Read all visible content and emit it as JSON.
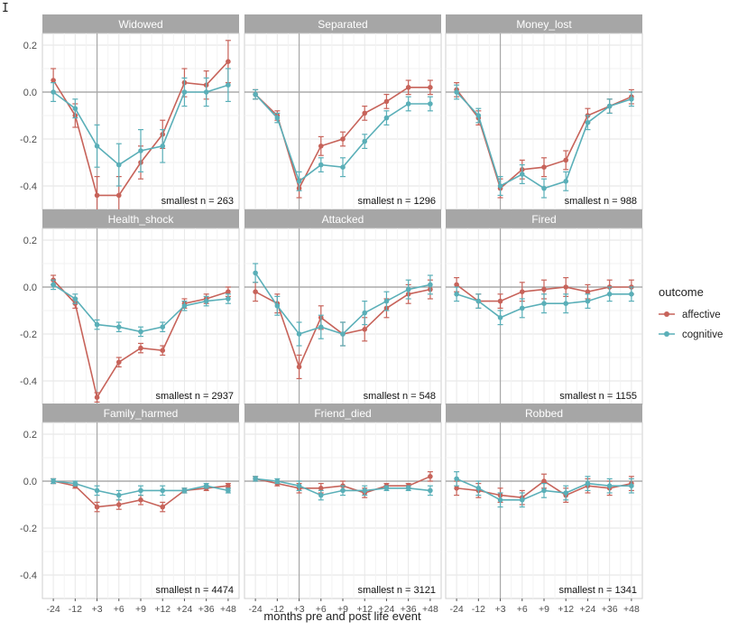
{
  "chart_data": {
    "type": "line",
    "facet_grid": "3x3",
    "xlabel": "months pre and post life event",
    "ylabel": "",
    "x_ticks": [
      "-24",
      "-12",
      "+3",
      "+6",
      "+9",
      "+12",
      "+24",
      "+36",
      "+48"
    ],
    "y_ticks": [
      "0.2",
      "0.0",
      "-0.2",
      "-0.4"
    ],
    "ylim": [
      -0.5,
      0.25
    ],
    "event_line_at": "+3",
    "grid": true,
    "legend": {
      "title": "outcome",
      "position": "right",
      "items": [
        {
          "name": "affective",
          "color": "#C7635A"
        },
        {
          "name": "cognitive",
          "color": "#5AAFB8"
        }
      ]
    },
    "panels": [
      {
        "title": "Widowed",
        "note": "smallest n = 263",
        "series": [
          {
            "name": "affective",
            "values": [
              0.05,
              -0.1,
              -0.44,
              -0.44,
              -0.3,
              -0.18,
              0.04,
              0.03,
              0.13
            ],
            "err": [
              0.05,
              0.05,
              0.08,
              0.08,
              0.07,
              0.06,
              0.06,
              0.06,
              0.09
            ]
          },
          {
            "name": "cognitive",
            "values": [
              0.0,
              -0.07,
              -0.23,
              -0.31,
              -0.25,
              -0.23,
              0.0,
              0.0,
              0.03
            ],
            "err": [
              0.04,
              0.04,
              0.09,
              0.09,
              0.09,
              0.07,
              0.06,
              0.06,
              0.07
            ]
          }
        ]
      },
      {
        "title": "Separated",
        "note": "smallest n = 1296",
        "series": [
          {
            "name": "affective",
            "values": [
              -0.01,
              -0.1,
              -0.41,
              -0.23,
              -0.2,
              -0.09,
              -0.04,
              0.02,
              0.02
            ],
            "err": [
              0.02,
              0.02,
              0.04,
              0.04,
              0.03,
              0.03,
              0.03,
              0.03,
              0.03
            ]
          },
          {
            "name": "cognitive",
            "values": [
              -0.01,
              -0.11,
              -0.38,
              -0.31,
              -0.32,
              -0.21,
              -0.11,
              -0.05,
              -0.05
            ],
            "err": [
              0.02,
              0.02,
              0.04,
              0.03,
              0.04,
              0.03,
              0.03,
              0.03,
              0.03
            ]
          }
        ]
      },
      {
        "title": "Money_lost",
        "note": "smallest n = 988",
        "series": [
          {
            "name": "affective",
            "values": [
              0.01,
              -0.11,
              -0.41,
              -0.33,
              -0.32,
              -0.29,
              -0.1,
              -0.06,
              -0.02
            ],
            "err": [
              0.03,
              0.03,
              0.04,
              0.04,
              0.04,
              0.04,
              0.03,
              0.03,
              0.03
            ]
          },
          {
            "name": "cognitive",
            "values": [
              0.0,
              -0.1,
              -0.4,
              -0.35,
              -0.41,
              -0.38,
              -0.13,
              -0.06,
              -0.03
            ],
            "err": [
              0.03,
              0.03,
              0.04,
              0.04,
              0.04,
              0.04,
              0.03,
              0.03,
              0.03
            ]
          }
        ]
      },
      {
        "title": "Health_shock",
        "note": "smallest n = 2937",
        "series": [
          {
            "name": "affective",
            "values": [
              0.03,
              -0.07,
              -0.47,
              -0.32,
              -0.26,
              -0.27,
              -0.07,
              -0.05,
              -0.02
            ],
            "err": [
              0.02,
              0.02,
              0.02,
              0.02,
              0.02,
              0.02,
              0.02,
              0.02,
              0.02
            ]
          },
          {
            "name": "cognitive",
            "values": [
              0.01,
              -0.05,
              -0.16,
              -0.17,
              -0.19,
              -0.17,
              -0.08,
              -0.06,
              -0.05
            ],
            "err": [
              0.02,
              0.02,
              0.02,
              0.02,
              0.02,
              0.02,
              0.02,
              0.02,
              0.02
            ]
          }
        ]
      },
      {
        "title": "Attacked",
        "note": "smallest n = 548",
        "series": [
          {
            "name": "affective",
            "values": [
              -0.02,
              -0.07,
              -0.34,
              -0.13,
              -0.2,
              -0.18,
              -0.09,
              -0.03,
              -0.01
            ],
            "err": [
              0.04,
              0.04,
              0.05,
              0.05,
              0.05,
              0.05,
              0.04,
              0.04,
              0.04
            ]
          },
          {
            "name": "cognitive",
            "values": [
              0.06,
              -0.08,
              -0.2,
              -0.17,
              -0.2,
              -0.11,
              -0.06,
              -0.01,
              0.01
            ],
            "err": [
              0.04,
              0.04,
              0.05,
              0.05,
              0.05,
              0.05,
              0.04,
              0.04,
              0.04
            ]
          }
        ]
      },
      {
        "title": "Fired",
        "note": "smallest n = 1155",
        "series": [
          {
            "name": "affective",
            "values": [
              0.01,
              -0.06,
              -0.06,
              -0.02,
              -0.01,
              0.0,
              -0.02,
              0.0,
              0.0
            ],
            "err": [
              0.03,
              0.03,
              0.03,
              0.04,
              0.04,
              0.04,
              0.03,
              0.03,
              0.03
            ]
          },
          {
            "name": "cognitive",
            "values": [
              -0.03,
              -0.06,
              -0.13,
              -0.09,
              -0.07,
              -0.07,
              -0.06,
              -0.03,
              -0.03
            ],
            "err": [
              0.03,
              0.03,
              0.03,
              0.04,
              0.04,
              0.04,
              0.03,
              0.03,
              0.03
            ]
          }
        ]
      },
      {
        "title": "Family_harmed",
        "note": "smallest n = 4474",
        "series": [
          {
            "name": "affective",
            "values": [
              0.0,
              -0.02,
              -0.11,
              -0.1,
              -0.08,
              -0.11,
              -0.04,
              -0.03,
              -0.02
            ],
            "err": [
              0.01,
              0.01,
              0.02,
              0.02,
              0.02,
              0.02,
              0.01,
              0.01,
              0.01
            ]
          },
          {
            "name": "cognitive",
            "values": [
              0.0,
              -0.01,
              -0.04,
              -0.06,
              -0.04,
              -0.04,
              -0.04,
              -0.02,
              -0.04
            ],
            "err": [
              0.01,
              0.01,
              0.02,
              0.02,
              0.02,
              0.02,
              0.01,
              0.01,
              0.01
            ]
          }
        ]
      },
      {
        "title": "Friend_died",
        "note": "smallest n = 3121",
        "series": [
          {
            "name": "affective",
            "values": [
              0.01,
              -0.01,
              -0.03,
              -0.03,
              -0.02,
              -0.05,
              -0.02,
              -0.02,
              0.02
            ],
            "err": [
              0.01,
              0.01,
              0.02,
              0.02,
              0.02,
              0.02,
              0.01,
              0.01,
              0.02
            ]
          },
          {
            "name": "cognitive",
            "values": [
              0.01,
              0.0,
              -0.02,
              -0.06,
              -0.04,
              -0.04,
              -0.03,
              -0.03,
              -0.04
            ],
            "err": [
              0.01,
              0.01,
              0.02,
              0.02,
              0.02,
              0.02,
              0.01,
              0.01,
              0.02
            ]
          }
        ]
      },
      {
        "title": "Robbed",
        "note": "smallest n = 1341",
        "series": [
          {
            "name": "affective",
            "values": [
              -0.03,
              -0.04,
              -0.06,
              -0.07,
              0.0,
              -0.06,
              -0.02,
              -0.03,
              -0.01
            ],
            "err": [
              0.03,
              0.03,
              0.03,
              0.03,
              0.03,
              0.03,
              0.03,
              0.03,
              0.03
            ]
          },
          {
            "name": "cognitive",
            "values": [
              0.01,
              -0.03,
              -0.08,
              -0.08,
              -0.04,
              -0.05,
              -0.01,
              -0.02,
              -0.02
            ],
            "err": [
              0.03,
              0.03,
              0.03,
              0.03,
              0.03,
              0.03,
              0.03,
              0.03,
              0.03
            ]
          }
        ]
      }
    ]
  }
}
